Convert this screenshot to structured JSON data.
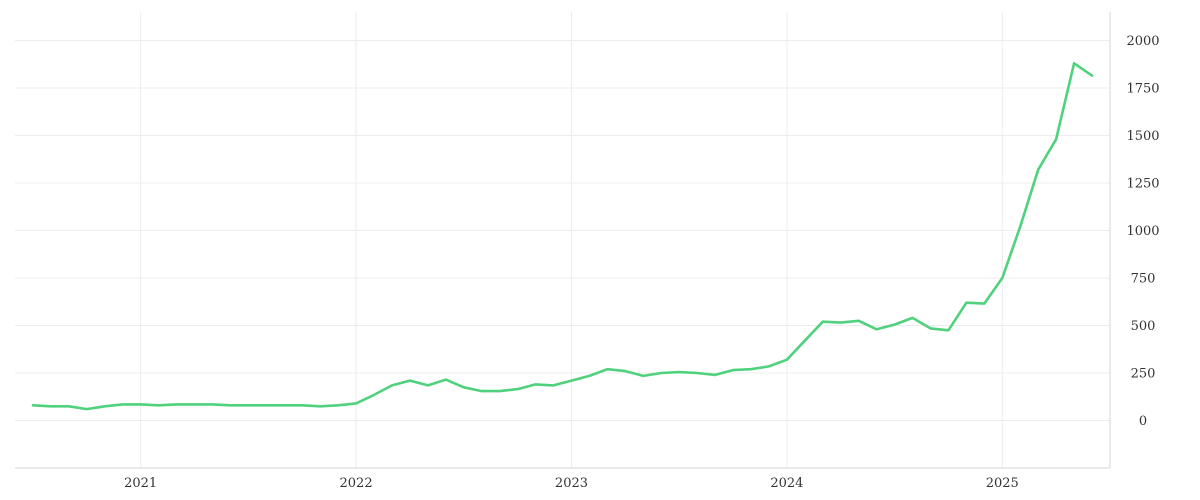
{
  "chart_data": {
    "type": "line",
    "title": "",
    "xlabel": "",
    "ylabel": "",
    "x_ticks": [
      "2021",
      "2022",
      "2023",
      "2024",
      "2025"
    ],
    "y_ticks": [
      "0",
      "250",
      "500",
      "750",
      "1000",
      "1250",
      "1500",
      "1750",
      "2000"
    ],
    "xlim": [
      "2020-06",
      "2025-07"
    ],
    "ylim": [
      -250,
      2150
    ],
    "y_axis_position": "right",
    "grid": true,
    "legend": "none",
    "series": [
      {
        "color": "#4fd17d",
        "points": [
          [
            "2020-07",
            80
          ],
          [
            "2020-08",
            75
          ],
          [
            "2020-09",
            75
          ],
          [
            "2020-10",
            60
          ],
          [
            "2020-11",
            75
          ],
          [
            "2020-12",
            85
          ],
          [
            "2021-01",
            85
          ],
          [
            "2021-02",
            80
          ],
          [
            "2021-03",
            85
          ],
          [
            "2021-04",
            85
          ],
          [
            "2021-05",
            85
          ],
          [
            "2021-06",
            80
          ],
          [
            "2021-07",
            80
          ],
          [
            "2021-08",
            80
          ],
          [
            "2021-09",
            80
          ],
          [
            "2021-10",
            80
          ],
          [
            "2021-11",
            75
          ],
          [
            "2021-12",
            80
          ],
          [
            "2022-01",
            90
          ],
          [
            "2022-02",
            135
          ],
          [
            "2022-03",
            185
          ],
          [
            "2022-04",
            210
          ],
          [
            "2022-05",
            185
          ],
          [
            "2022-06",
            215
          ],
          [
            "2022-07",
            175
          ],
          [
            "2022-08",
            155
          ],
          [
            "2022-09",
            155
          ],
          [
            "2022-10",
            165
          ],
          [
            "2022-11",
            190
          ],
          [
            "2022-12",
            185
          ],
          [
            "2023-01",
            210
          ],
          [
            "2023-02",
            235
          ],
          [
            "2023-03",
            270
          ],
          [
            "2023-04",
            260
          ],
          [
            "2023-05",
            235
          ],
          [
            "2023-06",
            250
          ],
          [
            "2023-07",
            255
          ],
          [
            "2023-08",
            250
          ],
          [
            "2023-09",
            240
          ],
          [
            "2023-10",
            265
          ],
          [
            "2023-11",
            270
          ],
          [
            "2023-12",
            285
          ],
          [
            "2024-01",
            320
          ],
          [
            "2024-02",
            420
          ],
          [
            "2024-03",
            520
          ],
          [
            "2024-04",
            515
          ],
          [
            "2024-05",
            525
          ],
          [
            "2024-06",
            480
          ],
          [
            "2024-07",
            505
          ],
          [
            "2024-08",
            540
          ],
          [
            "2024-09",
            485
          ],
          [
            "2024-10",
            475
          ],
          [
            "2024-11",
            620
          ],
          [
            "2024-12",
            615
          ],
          [
            "2025-01",
            750
          ],
          [
            "2025-02",
            1020
          ],
          [
            "2025-03",
            1320
          ],
          [
            "2025-04",
            1480
          ],
          [
            "2025-05",
            1880
          ],
          [
            "2025-06",
            1815
          ]
        ]
      }
    ]
  }
}
